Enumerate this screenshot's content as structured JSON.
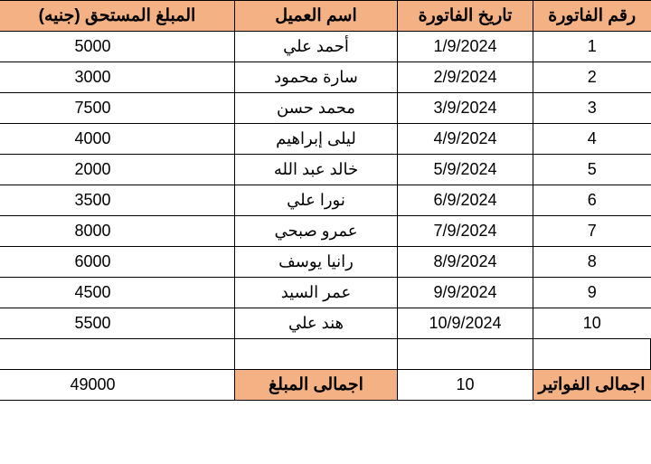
{
  "table": {
    "columns": [
      "رقم الفاتورة",
      "تاريخ الفاتورة",
      "اسم العميل",
      "المبلغ المستحق (جنيه)"
    ],
    "header_bg": "#f4b183",
    "rows": [
      {
        "num": "1",
        "date": "1/9/2024",
        "name": "أحمد علي",
        "amount": "5000"
      },
      {
        "num": "2",
        "date": "2/9/2024",
        "name": "سارة محمود",
        "amount": "3000"
      },
      {
        "num": "3",
        "date": "3/9/2024",
        "name": "محمد حسن",
        "amount": "7500"
      },
      {
        "num": "4",
        "date": "4/9/2024",
        "name": "ليلى إبراهيم",
        "amount": "4000"
      },
      {
        "num": "5",
        "date": "5/9/2024",
        "name": "خالد عبد الله",
        "amount": "2000"
      },
      {
        "num": "6",
        "date": "6/9/2024",
        "name": "نورا علي",
        "amount": "3500"
      },
      {
        "num": "7",
        "date": "7/9/2024",
        "name": "عمرو صبحي",
        "amount": "8000"
      },
      {
        "num": "8",
        "date": "8/9/2024",
        "name": "رانيا يوسف",
        "amount": "6000"
      },
      {
        "num": "9",
        "date": "9/9/2024",
        "name": "عمر السيد",
        "amount": "4500"
      },
      {
        "num": "10",
        "date": "10/9/2024",
        "name": "هند علي",
        "amount": "5500"
      }
    ]
  },
  "totals": {
    "invoices_label": "اجمالى الفواتير",
    "invoices_value": "10",
    "amount_label": "اجمالى المبلغ",
    "amount_value": "49000"
  }
}
